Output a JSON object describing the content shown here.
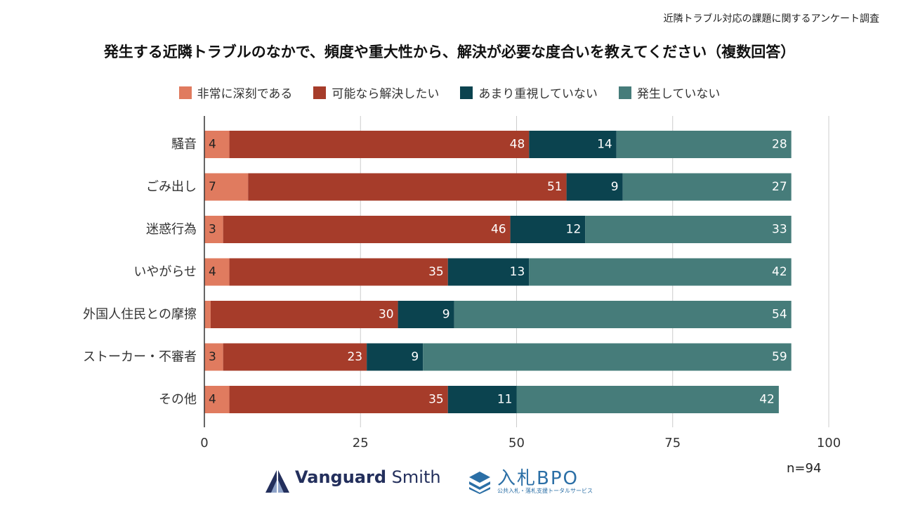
{
  "survey_label": "近隣トラブル対応の課題に関するアンケート調査",
  "colors": {
    "serious": "#E07B5F",
    "want_resolve": "#A63C2A",
    "not_important": "#0B434F",
    "not_occurring": "#467C7A",
    "grid": "#CCCCCC",
    "axis": "#333333"
  },
  "chart_data": {
    "type": "bar",
    "orientation": "horizontal",
    "stacked": true,
    "title": "発生する近隣トラブルのなかで、頻度や重大性から、解決が必要な度合いを教えてください（複数回答）",
    "categories": [
      "騒音",
      "ごみ出し",
      "迷惑行為",
      "いやがらせ",
      "外国人住民との摩擦",
      "ストーカー・不審者",
      "その他"
    ],
    "series": [
      {
        "name": "非常に深刻である",
        "color_key": "serious",
        "values": [
          4,
          7,
          3,
          4,
          1,
          3,
          4
        ]
      },
      {
        "name": "可能なら解決したい",
        "color_key": "want_resolve",
        "values": [
          48,
          51,
          46,
          35,
          30,
          23,
          35
        ]
      },
      {
        "name": "あまり重視していない",
        "color_key": "not_important",
        "values": [
          14,
          9,
          12,
          13,
          9,
          9,
          11
        ]
      },
      {
        "name": "発生していない",
        "color_key": "not_occurring",
        "values": [
          28,
          27,
          33,
          42,
          54,
          59,
          42
        ]
      }
    ],
    "xlim": [
      0,
      100
    ],
    "xticks": [
      0,
      25,
      50,
      75,
      100
    ],
    "grid": true,
    "legend": "top-center",
    "xlabel": "",
    "ylabel": ""
  },
  "footer": {
    "n_label": "n=94",
    "logo1_bold": "Vanguard",
    "logo1_light": "Smith",
    "logo2_main": "入札BPO",
    "logo2_sub": "公共入札・落札支援トータルサービス"
  }
}
